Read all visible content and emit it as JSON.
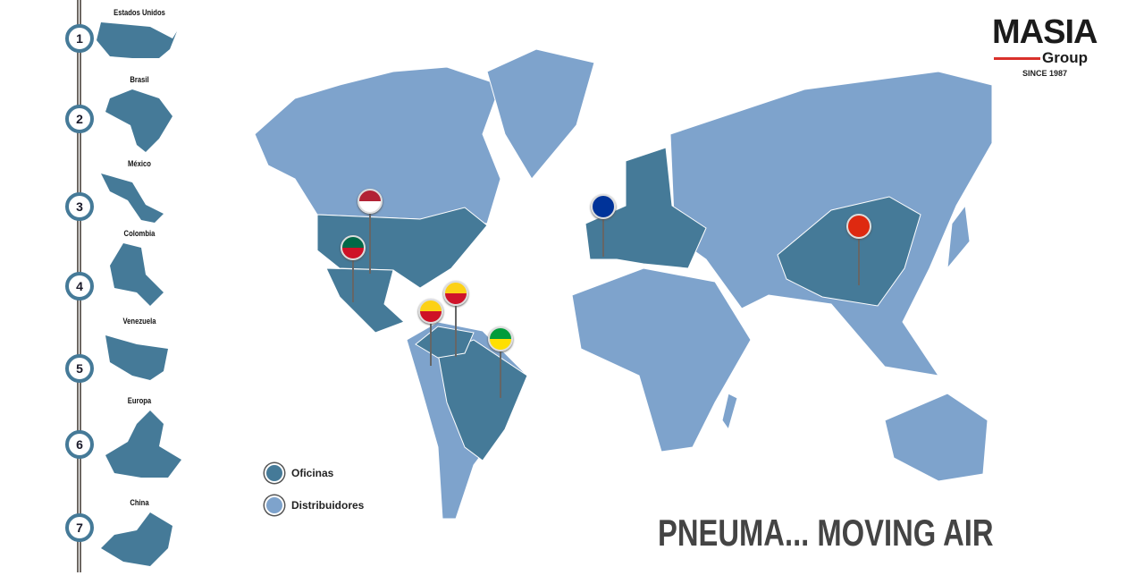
{
  "sidebar": {
    "items": [
      {
        "number": "1",
        "label": "Estados Unidos"
      },
      {
        "number": "2",
        "label": "Brasil"
      },
      {
        "number": "3",
        "label": "México"
      },
      {
        "number": "4",
        "label": "Colombia"
      },
      {
        "number": "5",
        "label": "Venezuela"
      },
      {
        "number": "6",
        "label": "Europa"
      },
      {
        "number": "7",
        "label": "China"
      }
    ]
  },
  "logo": {
    "name": "MASIA",
    "sub": "Group",
    "since": "SINCE 1987"
  },
  "legend": [
    {
      "label": "Oficinas",
      "color": "#457a98"
    },
    {
      "label": "Distribuidores",
      "color": "#7ea3cc"
    }
  ],
  "slogan": "PNEUMA... MOVING AIR",
  "colors": {
    "office": "#457a98",
    "distributor": "#7ea3cc",
    "accent": "#d9312b"
  },
  "pins": [
    "usa-flag",
    "mexico-flag",
    "venezuela-flag",
    "colombia-flag",
    "brazil-flag",
    "eu-flag",
    "china-flag"
  ]
}
